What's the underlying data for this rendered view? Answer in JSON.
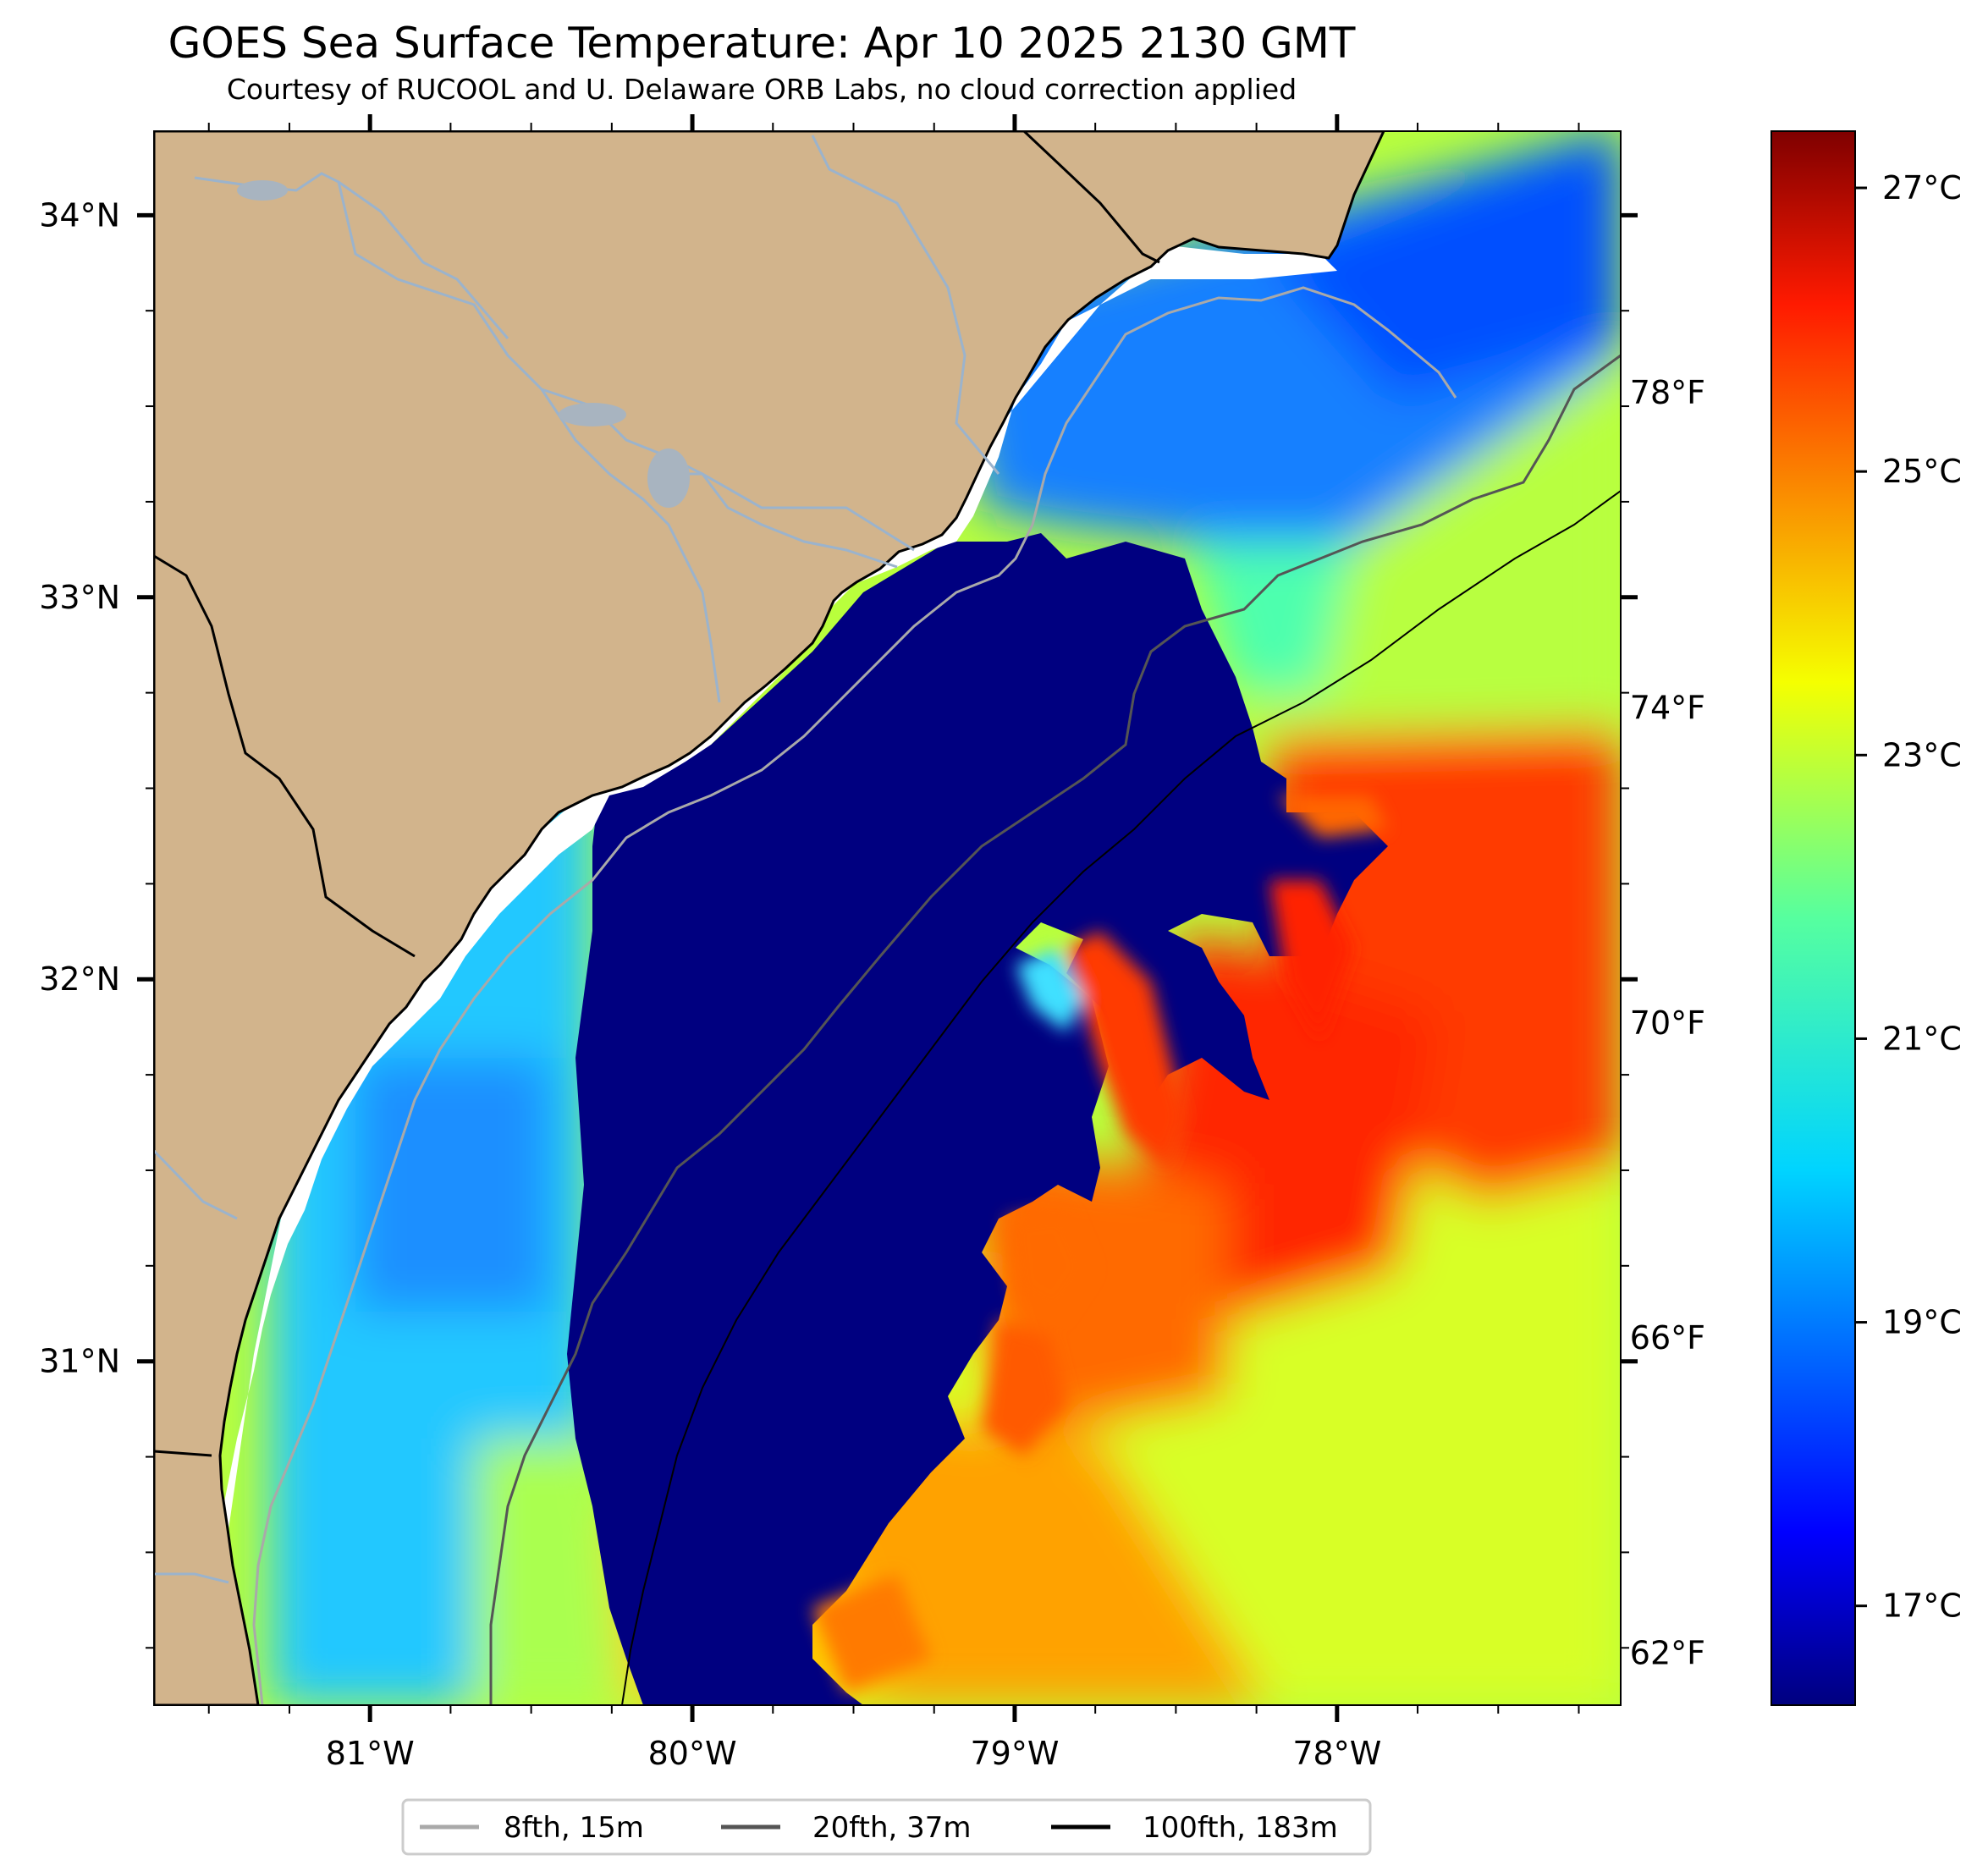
{
  "title": "GOES Sea Surface Temperature: Apr 10 2025 2130 GMT",
  "subtitle": "Courtesy of RUCOOL and U. Delaware ORB Labs, no cloud correction applied",
  "map": {
    "lon_range": [
      -81.67,
      -77.12
    ],
    "lat_range": [
      30.1,
      34.22
    ],
    "lon_ticks": [
      {
        "value": -81,
        "label": "81°W"
      },
      {
        "value": -80,
        "label": "80°W"
      },
      {
        "value": -79,
        "label": "79°W"
      },
      {
        "value": -78,
        "label": "78°W"
      }
    ],
    "lat_ticks": [
      {
        "value": 31,
        "label": "31°N"
      },
      {
        "value": 32,
        "label": "32°N"
      },
      {
        "value": 33,
        "label": "33°N"
      },
      {
        "value": 34,
        "label": "34°N"
      }
    ],
    "land_color": "#d2b48c",
    "coastline_color": "#000000",
    "river_color": "#9bb3cc"
  },
  "colorbar": {
    "colormap": "jet",
    "celsius_range": [
      16.3,
      27.4
    ],
    "celsius_ticks": [
      {
        "value": 17,
        "label": "17°C"
      },
      {
        "value": 19,
        "label": "19°C"
      },
      {
        "value": 21,
        "label": "21°C"
      },
      {
        "value": 23,
        "label": "23°C"
      },
      {
        "value": 25,
        "label": "25°C"
      },
      {
        "value": 27,
        "label": "27°C"
      }
    ],
    "fahrenheit_ticks": [
      {
        "value": 62,
        "label": "62°F"
      },
      {
        "value": 66,
        "label": "66°F"
      },
      {
        "value": 70,
        "label": "70°F"
      },
      {
        "value": 74,
        "label": "74°F"
      },
      {
        "value": 78,
        "label": "78°F"
      }
    ]
  },
  "legend": {
    "placement": "bottom-center",
    "items": [
      {
        "label": "8fth, 15m",
        "color": "#a9a9a9"
      },
      {
        "label": "20fth, 37m",
        "color": "#555555"
      },
      {
        "label": "100fth, 183m",
        "color": "#000000"
      }
    ]
  }
}
